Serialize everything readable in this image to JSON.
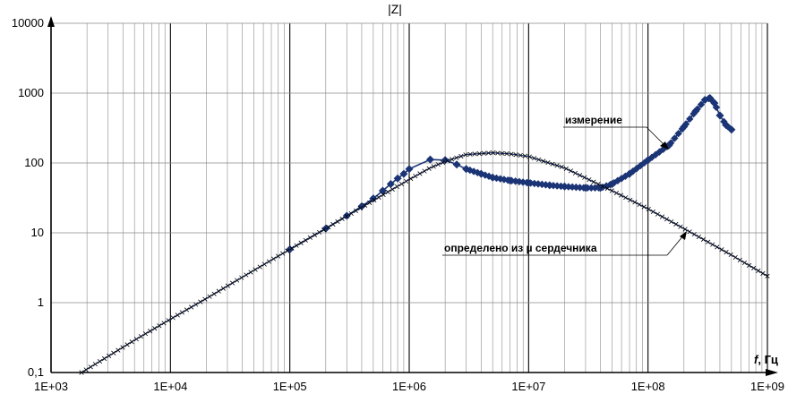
{
  "chart_data": {
    "type": "line",
    "title": "|Z|",
    "xlabel": {
      "var": "f",
      "unit": ", Гц"
    },
    "ylabel": "",
    "xscale": "log",
    "yscale": "log",
    "xlim": [
      1000,
      1000000000
    ],
    "ylim": [
      0.1,
      10000
    ],
    "grid": true,
    "x_tick_labels": [
      "1E+03",
      "1E+04",
      "1E+05",
      "1E+06",
      "1E+07",
      "1E+08",
      "1E+09"
    ],
    "y_tick_labels": [
      "0,1",
      "1",
      "10",
      "100",
      "1000",
      "10000"
    ],
    "series": [
      {
        "key": "measurement",
        "name": "измерение",
        "color": "#1b3475",
        "marker": "diamond",
        "x": [
          100000,
          200000,
          300000,
          400000,
          500000,
          600000,
          700000,
          800000,
          900000,
          1000000,
          1500000,
          2000000,
          2500000,
          3000000,
          4000000,
          5000000,
          7000000,
          10000000,
          15000000,
          20000000,
          30000000,
          40000000,
          50000000,
          70000000,
          100000000,
          150000000,
          200000000,
          250000000,
          300000000,
          330000000,
          360000000,
          400000000,
          450000000,
          500000000
        ],
        "y": [
          5.8,
          11.5,
          17.5,
          24,
          31,
          40,
          50,
          60,
          70,
          82,
          112,
          110,
          95,
          82,
          70,
          62,
          56,
          52,
          48,
          46,
          44,
          44,
          50,
          70,
          110,
          180,
          330,
          550,
          800,
          850,
          720,
          480,
          350,
          300
        ]
      },
      {
        "key": "calculated",
        "name": "определено из µ сердечника",
        "color": "#000000",
        "marker": "cross",
        "x": [
          1800,
          3000,
          5000,
          10000,
          20000,
          50000,
          100000,
          200000,
          500000,
          1000000,
          1500000,
          2000000,
          3000000,
          5000000,
          7000000,
          10000000,
          20000000,
          50000000,
          100000000,
          200000000,
          500000000,
          1000000000
        ],
        "y": [
          0.1,
          0.17,
          0.29,
          0.58,
          1.15,
          2.9,
          5.8,
          11.5,
          29,
          58,
          85,
          105,
          132,
          140,
          135,
          124,
          85,
          40,
          22,
          11.5,
          4.8,
          2.4
        ]
      }
    ],
    "annotations": [
      {
        "series": "measurement",
        "text": "измерение"
      },
      {
        "series": "calculated",
        "text": "определено из µ сердечника"
      }
    ]
  }
}
